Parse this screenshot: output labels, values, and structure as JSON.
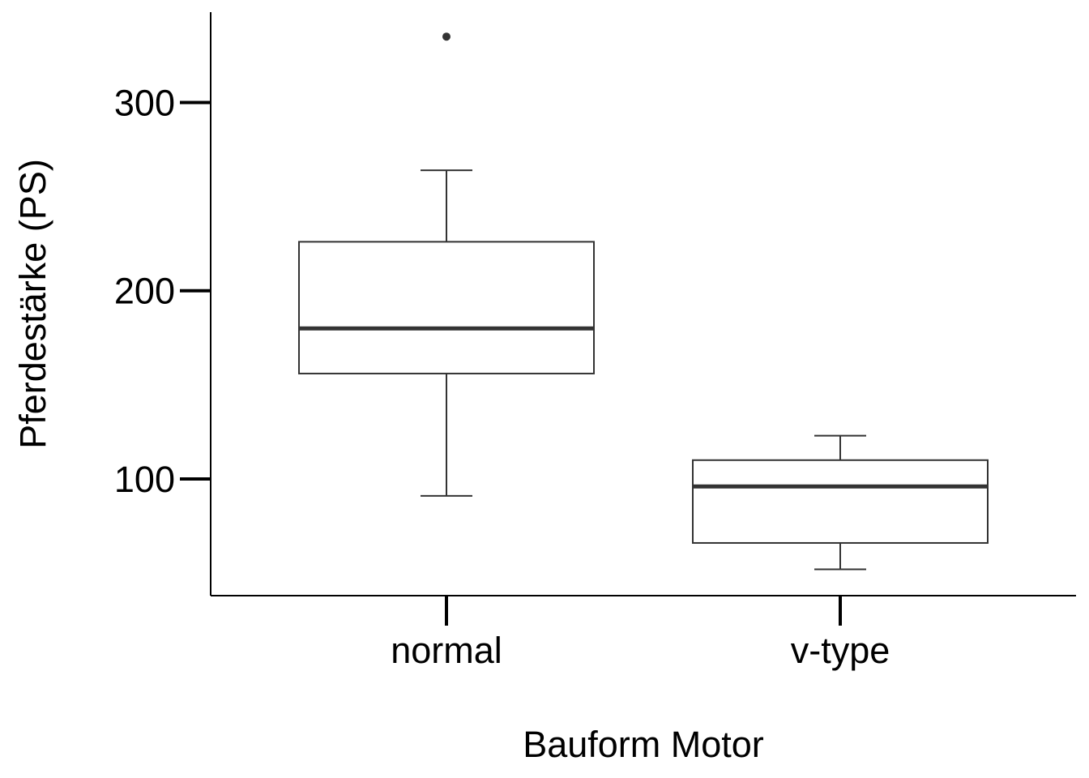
{
  "chart_data": {
    "type": "boxplot",
    "xlabel": "Bauform Motor",
    "ylabel": "Pferdestärke (PS)",
    "categories": [
      "normal",
      "v-type"
    ],
    "ylim": [
      38,
      348
    ],
    "yticks": [
      100,
      200,
      300
    ],
    "boxes": [
      {
        "category": "normal",
        "whisker_low": 91,
        "q1": 156,
        "median": 180,
        "q3": 226,
        "whisker_high": 264,
        "outliers": [
          335
        ]
      },
      {
        "category": "v-type",
        "whisker_low": 52,
        "q1": 66,
        "median": 96,
        "q3": 110,
        "whisker_high": 123,
        "outliers": []
      }
    ],
    "grid": false,
    "legend": "none",
    "colors": {
      "box_stroke": "#333333",
      "median": "#333333",
      "axis": "#000000",
      "background": "#ffffff"
    }
  }
}
